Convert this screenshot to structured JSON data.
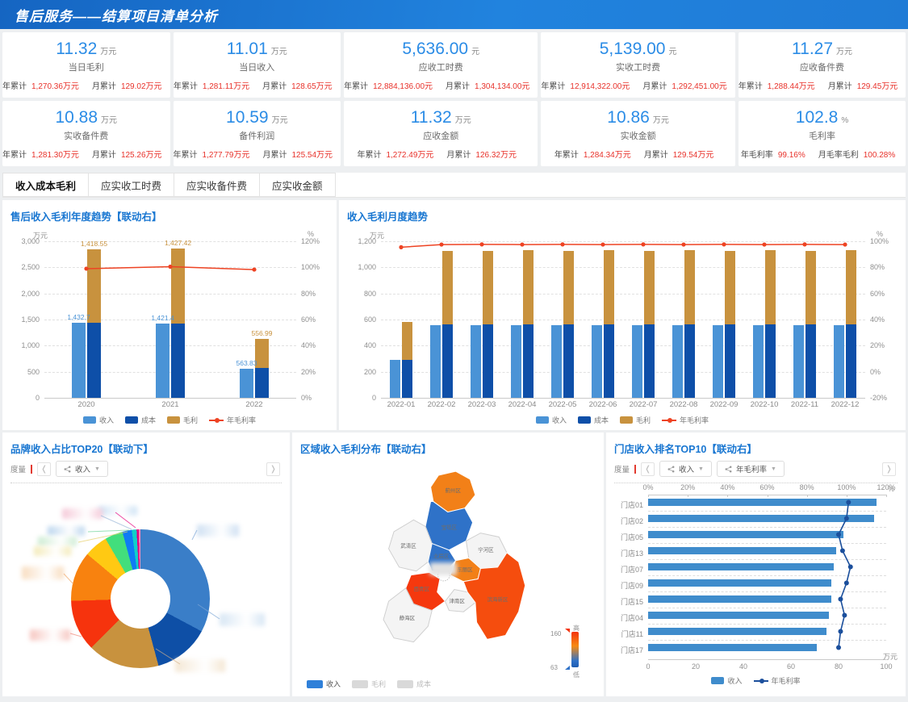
{
  "header": {
    "title": "售后服务——结算项目清单分析"
  },
  "kpi_cards": [
    {
      "value": "11.32",
      "unit": "万元",
      "label": "当日毛利",
      "stat1_label": "年累计",
      "stat1_value": "1,270.36万元",
      "stat2_label": "月累计",
      "stat2_value": "129.02万元"
    },
    {
      "value": "11.01",
      "unit": "万元",
      "label": "当日收入",
      "stat1_label": "年累计",
      "stat1_value": "1,281.11万元",
      "stat2_label": "月累计",
      "stat2_value": "128.65万元"
    },
    {
      "value": "5,636.00",
      "unit": "元",
      "label": "应收工时费",
      "stat1_label": "年累计",
      "stat1_value": "12,884,136.00元",
      "stat2_label": "月累计",
      "stat2_value": "1,304,134.00元"
    },
    {
      "value": "5,139.00",
      "unit": "元",
      "label": "实收工时费",
      "stat1_label": "年累计",
      "stat1_value": "12,914,322.00元",
      "stat2_label": "月累计",
      "stat2_value": "1,292,451.00元"
    },
    {
      "value": "11.27",
      "unit": "万元",
      "label": "应收备件费",
      "stat1_label": "年累计",
      "stat1_value": "1,288.44万元",
      "stat2_label": "月累计",
      "stat2_value": "129.45万元"
    },
    {
      "value": "10.88",
      "unit": "万元",
      "label": "实收备件费",
      "stat1_label": "年累计",
      "stat1_value": "1,281.30万元",
      "stat2_label": "月累计",
      "stat2_value": "125.26万元"
    },
    {
      "value": "10.59",
      "unit": "万元",
      "label": "备件利润",
      "stat1_label": "年累计",
      "stat1_value": "1,277.79万元",
      "stat2_label": "月累计",
      "stat2_value": "125.54万元"
    },
    {
      "value": "11.32",
      "unit": "万元",
      "label": "应收金额",
      "stat1_label": "年累计",
      "stat1_value": "1,272.49万元",
      "stat2_label": "月累计",
      "stat2_value": "126.32万元"
    },
    {
      "value": "10.86",
      "unit": "万元",
      "label": "实收金额",
      "stat1_label": "年累计",
      "stat1_value": "1,284.34万元",
      "stat2_label": "月累计",
      "stat2_value": "129.54万元"
    },
    {
      "value": "102.8",
      "unit": "%",
      "label": "毛利率",
      "stat1_label": "年毛利率",
      "stat1_value": "99.16%",
      "stat2_label": "月毛率毛利",
      "stat2_value": "100.28%"
    }
  ],
  "tabs": [
    {
      "label": "收入成本毛利",
      "active": true
    },
    {
      "label": "应实收工时费",
      "active": false
    },
    {
      "label": "应实收备件费",
      "active": false
    },
    {
      "label": "应实收金额",
      "active": false
    }
  ],
  "selectors": {
    "brand": {
      "label": "度量",
      "pills": [
        "收入"
      ]
    },
    "store": {
      "label": "度量",
      "pills": [
        "收入",
        "年毛利率"
      ]
    }
  },
  "chart_data": [
    {
      "id": "annual",
      "type": "bar",
      "title": "售后收入毛利年度趋势【联动右】",
      "categories": [
        "2020",
        "2021",
        "2022"
      ],
      "series": [
        {
          "name": "收入",
          "type": "bar",
          "color": "#4a93d6",
          "values": [
            1432.7,
            1421.4,
            563.83
          ],
          "labels": [
            "1,432.7",
            "1,421.4",
            "563.83"
          ]
        },
        {
          "name": "成本",
          "type": "bar",
          "stack": true,
          "color": "#0e4fa8",
          "values": [
            1433,
            1430,
            565
          ]
        },
        {
          "name": "毛利",
          "type": "bar",
          "stack": true,
          "color": "#c8923e",
          "values": [
            1418.55,
            1427.42,
            556.99
          ],
          "labels": [
            "1,418.55",
            "1,427.42",
            "556.99"
          ]
        },
        {
          "name": "年毛利率",
          "type": "line",
          "color": "#ee4323",
          "values": [
            99,
            100.5,
            98.3
          ]
        }
      ],
      "y_left": {
        "unit": "万元",
        "min": 0,
        "max": 3000,
        "step": 500
      },
      "y_right": {
        "unit": "%",
        "min": 0,
        "max": 120,
        "step": 20
      },
      "legend": [
        "收入",
        "成本",
        "毛利",
        "年毛利率"
      ]
    },
    {
      "id": "monthly",
      "type": "bar",
      "title": "收入毛利月度趋势",
      "categories": [
        "2022-01",
        "2022-02",
        "2022-03",
        "2022-04",
        "2022-05",
        "2022-06",
        "2022-07",
        "2022-08",
        "2022-09",
        "2022-10",
        "2022-11",
        "2022-12"
      ],
      "series": [
        {
          "name": "收入",
          "type": "bar",
          "color": "#4a93d6",
          "values": [
            289,
            557,
            556,
            558,
            556,
            557,
            556,
            558,
            556,
            557,
            556,
            557
          ]
        },
        {
          "name": "成本",
          "type": "bar",
          "stack": true,
          "color": "#0e4fa8",
          "values": [
            291,
            562,
            562,
            563,
            562,
            563,
            562,
            563,
            562,
            563,
            562,
            563
          ]
        },
        {
          "name": "毛利",
          "type": "bar",
          "stack": true,
          "color": "#c8923e",
          "values": [
            293,
            565,
            566,
            566,
            565,
            566,
            565,
            566,
            565,
            566,
            565,
            566
          ]
        },
        {
          "name": "年毛利率",
          "type": "line",
          "color": "#ee4323",
          "values": [
            96.2,
            97.9,
            98,
            97.9,
            98,
            97.9,
            98,
            97.9,
            98,
            97.9,
            98,
            97.9
          ]
        }
      ],
      "y_left": {
        "unit": "万元",
        "min": 0,
        "max": 1200,
        "step": 200
      },
      "y_right": {
        "unit": "%",
        "min": 0,
        "max": 100,
        "step": 20
      },
      "legend": [
        "收入",
        "成本",
        "毛利",
        "年毛利率"
      ]
    },
    {
      "id": "brand_donut",
      "type": "pie",
      "title": "品牌收入占比TOP20【联动下】",
      "note": "slice labels are pixelated/redacted in the source image",
      "slices": [
        {
          "color": "#3a7ec8",
          "pct": 32.8
        },
        {
          "color": "#0e4fa6",
          "pct": 13.0
        },
        {
          "color": "#c8923e",
          "pct": 16.7
        },
        {
          "color": "#f6330d",
          "pct": 12.0
        },
        {
          "color": "#f8820f",
          "pct": 11.6
        },
        {
          "color": "#ffc913",
          "pct": 5.5
        },
        {
          "color": "#42de7c",
          "pct": 4.2
        },
        {
          "color": "#0f7bf4",
          "pct": 2.2
        },
        {
          "color": "#10cfc9",
          "pct": 1.1
        },
        {
          "color": "#e6007e",
          "pct": 0.5
        },
        {
          "color": "#ff8ab8",
          "pct": 0.4
        }
      ]
    },
    {
      "id": "region_map",
      "type": "map",
      "title": "区域收入毛利分布【联动右】",
      "regions": [
        {
          "name": "蓟州区",
          "color": "#f28018"
        },
        {
          "name": "宝坻区",
          "color": "#2f72c8"
        },
        {
          "name": "武清区",
          "color": "#f4f4f4"
        },
        {
          "name": "宁河区",
          "color": "#f4f4f4"
        },
        {
          "name": "北辰区",
          "color": "#2f72c8"
        },
        {
          "name": "东丽区",
          "color": "#f28018"
        },
        {
          "name": "西青区",
          "color": "#f5380e"
        },
        {
          "name": "津南区",
          "color": "#f4f4f4"
        },
        {
          "name": "滨海新区",
          "color": "#f54d0e"
        },
        {
          "name": "静海区",
          "color": "#f4f4f4"
        }
      ],
      "scale": {
        "max": "160",
        "min": "63",
        "high": "高",
        "low": "低"
      },
      "legend": [
        {
          "label": "收入",
          "active": true,
          "color": "#2f80d9"
        },
        {
          "label": "毛利",
          "active": false,
          "color": "#d9d9d9"
        },
        {
          "label": "成本",
          "active": false,
          "color": "#d9d9d9"
        }
      ]
    },
    {
      "id": "stores",
      "type": "bar",
      "title": "门店收入排名TOP10【联动右】",
      "categories": [
        "门店01",
        "门店02",
        "门店05",
        "门店13",
        "门店07",
        "门店09",
        "门店15",
        "门店04",
        "门店11",
        "门店17"
      ],
      "bars": {
        "name": "收入",
        "color": "#3f8ccc",
        "values": [
          96,
          95,
          82,
          79,
          78,
          77,
          77,
          76,
          75,
          71
        ]
      },
      "line": {
        "name": "年毛利率",
        "color": "#1b4f9c",
        "values": [
          101,
          100,
          96,
          98,
          102,
          100,
          97,
          99,
          97,
          96
        ]
      },
      "top_axis": {
        "unit": "%",
        "min": 0,
        "max": 120,
        "step": 20
      },
      "bottom_axis": {
        "unit": "万元",
        "min": 0,
        "max": 100,
        "step": 20
      },
      "legend": [
        "收入",
        "年毛利率"
      ]
    }
  ]
}
